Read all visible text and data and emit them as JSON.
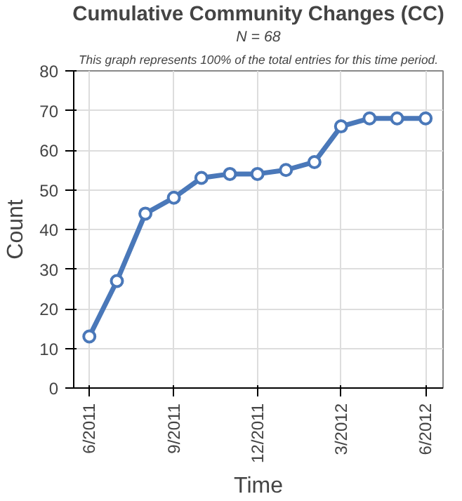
{
  "chart_data": {
    "type": "line",
    "title": "Cumulative Community Changes (CC)",
    "subtitle": "N = 68",
    "annotations": [
      "This graph represents 100% of the total entries for this time period."
    ],
    "xlabel": "Time",
    "ylabel": "Count",
    "x": [
      "2011-06",
      "2011-07",
      "2011-08",
      "2011-09",
      "2011-10",
      "2011-11",
      "2011-12",
      "2012-01",
      "2012-02",
      "2012-03",
      "2012-04",
      "2012-05",
      "2012-06"
    ],
    "series": [
      {
        "color": "#4a78b9",
        "values": [
          13,
          27,
          44,
          48,
          53,
          54,
          54,
          55,
          57,
          66,
          68,
          68,
          68
        ]
      }
    ],
    "xlim": [
      "2011-05-15",
      "2012-06-20"
    ],
    "xticks": [
      {
        "value": "2011-06",
        "label": "6/2011"
      },
      {
        "value": "2011-09",
        "label": "9/2011"
      },
      {
        "value": "2011-12",
        "label": "12/2011"
      },
      {
        "value": "2012-03",
        "label": "3/2012"
      },
      {
        "value": "2012-06",
        "label": "6/2012"
      }
    ],
    "ylim": [
      0,
      80
    ],
    "yticks": [
      0,
      10,
      20,
      30,
      40,
      50,
      60,
      70,
      80
    ],
    "grid": true,
    "marker": "circle",
    "line_style": "solid"
  }
}
